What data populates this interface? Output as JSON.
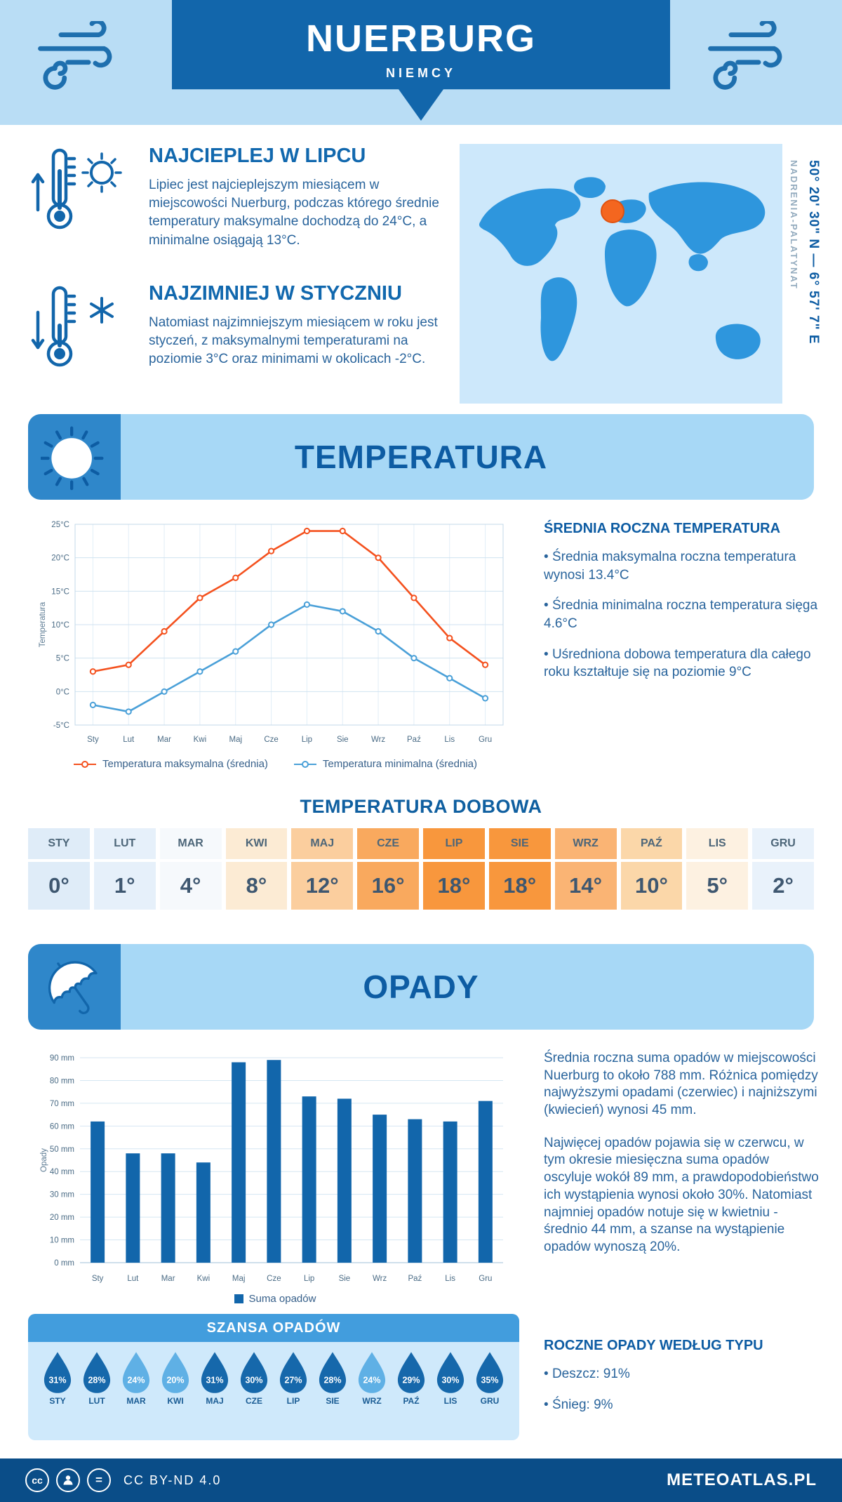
{
  "meta": {
    "location": "NUERBURG",
    "country": "NIEMCY",
    "coordinates": "50° 20' 30\" N — 6° 57' 7\" E",
    "region": "NADRENIA-PALATYNAT"
  },
  "colors": {
    "header_blue": "#1266ab",
    "banner_light": "#a7d8f6",
    "accent_orange": "#f4511e",
    "min_blue": "#4aa0d8",
    "bar_blue": "#1266ab",
    "drop_dark": "#1668ab",
    "drop_light": "#5fb0e5",
    "marker_orange": "#f4661f"
  },
  "highlights": {
    "warm": {
      "title": "NAJCIEPLEJ W LIPCU",
      "text": "Lipiec jest najcieplejszym miesiącem w miejscowości Nuerburg, podczas którego średnie temperatury maksymalne dochodzą do 24°C, a minimalne osiągają 13°C."
    },
    "cold": {
      "title": "NAJZIMNIEJ W STYCZNIU",
      "text": "Natomiast najzimniejszym miesiącem w roku jest styczeń, z maksymalnymi temperaturami na poziomie 3°C oraz minimami w okolicach -2°C."
    }
  },
  "temperature_section": {
    "title": "TEMPERATURA",
    "summary_title": "ŚREDNIA ROCZNA TEMPERATURA",
    "bullets": [
      "Średnia maksymalna roczna temperatura wynosi 13.4°C",
      "Średnia minimalna roczna temperatura sięga 4.6°C",
      "Uśredniona dobowa temperatura dla całego roku kształtuje się na poziomie 9°C"
    ],
    "daily_title": "TEMPERATURA DOBOWA"
  },
  "precipitation_section": {
    "title": "OPADY",
    "paragraphs": [
      "Średnia roczna suma opadów w miejscowości Nuerburg to około 788 mm. Różnica pomiędzy najwyższymi opadami (czerwiec) i najniższymi (kwiecień) wynosi 45 mm.",
      "Najwięcej opadów pojawia się w czerwcu, w tym okresie miesięczna suma opadów oscyluje wokół 89 mm, a prawdopodobieństwo ich wystąpienia wynosi około 30%. Natomiast najmniej opadów notuje się w kwietniu - średnio 44 mm, a szanse na wystąpienie opadów wynoszą 20%.",
      "SZANSA OPADÓW"
    ],
    "chance_title": "SZANSA OPADÓW",
    "type_title": "ROCZNE OPADY WEDŁUG TYPU",
    "type_bullets": [
      "Deszcz: 91%",
      "Śnieg: 9%"
    ]
  },
  "footer": {
    "license": "CC BY-ND 4.0",
    "site": "METEOATLAS.PL"
  },
  "chart_data": [
    {
      "type": "line",
      "title": "Temperatura",
      "categories": [
        "Sty",
        "Lut",
        "Mar",
        "Kwi",
        "Maj",
        "Cze",
        "Lip",
        "Sie",
        "Wrz",
        "Paź",
        "Lis",
        "Gru"
      ],
      "series": [
        {
          "name": "Temperatura maksymalna (średnia)",
          "color": "#f4511e",
          "values": [
            3,
            4,
            9,
            14,
            17,
            21,
            24,
            24,
            20,
            14,
            8,
            4
          ]
        },
        {
          "name": "Temperatura minimalna (średnia)",
          "color": "#4aa0d8",
          "values": [
            -2,
            -3,
            0,
            3,
            6,
            10,
            13,
            12,
            9,
            5,
            2,
            -1
          ]
        }
      ],
      "ylabel": "Temperatura",
      "ylim": [
        -5,
        25
      ],
      "ytick_step": 5,
      "ytick_suffix": "°C",
      "grid": true,
      "legend_position": "bottom"
    },
    {
      "type": "bar",
      "title": "Opady",
      "categories": [
        "Sty",
        "Lut",
        "Mar",
        "Kwi",
        "Maj",
        "Cze",
        "Lip",
        "Sie",
        "Wrz",
        "Paź",
        "Lis",
        "Gru"
      ],
      "series": [
        {
          "name": "Suma opadów",
          "color": "#1266ab",
          "values": [
            62,
            48,
            48,
            44,
            88,
            89,
            73,
            72,
            65,
            63,
            62,
            71
          ]
        }
      ],
      "ylabel": "Opady",
      "ylim": [
        0,
        90
      ],
      "ytick_step": 10,
      "ytick_suffix": " mm",
      "grid": true,
      "legend_position": "bottom"
    },
    {
      "type": "table",
      "title": "TEMPERATURA DOBOWA",
      "categories": [
        "STY",
        "LUT",
        "MAR",
        "KWI",
        "MAJ",
        "CZE",
        "LIP",
        "SIE",
        "WRZ",
        "PAŹ",
        "LIS",
        "GRU"
      ],
      "values": [
        "0°",
        "1°",
        "4°",
        "8°",
        "12°",
        "16°",
        "18°",
        "18°",
        "14°",
        "10°",
        "5°",
        "2°"
      ],
      "cell_colors": [
        "#dfecf8",
        "#e6f0fa",
        "#f6f9fc",
        "#fcebd4",
        "#fbce9e",
        "#f9a95e",
        "#f8973d",
        "#f8973d",
        "#fab474",
        "#fbd7a9",
        "#fdf1e1",
        "#e9f2fb"
      ]
    },
    {
      "type": "pictogram",
      "title": "SZANSA OPADÓW",
      "categories": [
        "STY",
        "LUT",
        "MAR",
        "KWI",
        "MAJ",
        "CZE",
        "LIP",
        "SIE",
        "WRZ",
        "PAŹ",
        "LIS",
        "GRU"
      ],
      "values": [
        31,
        28,
        24,
        20,
        31,
        30,
        27,
        28,
        24,
        29,
        30,
        35
      ],
      "unit": "%"
    }
  ]
}
